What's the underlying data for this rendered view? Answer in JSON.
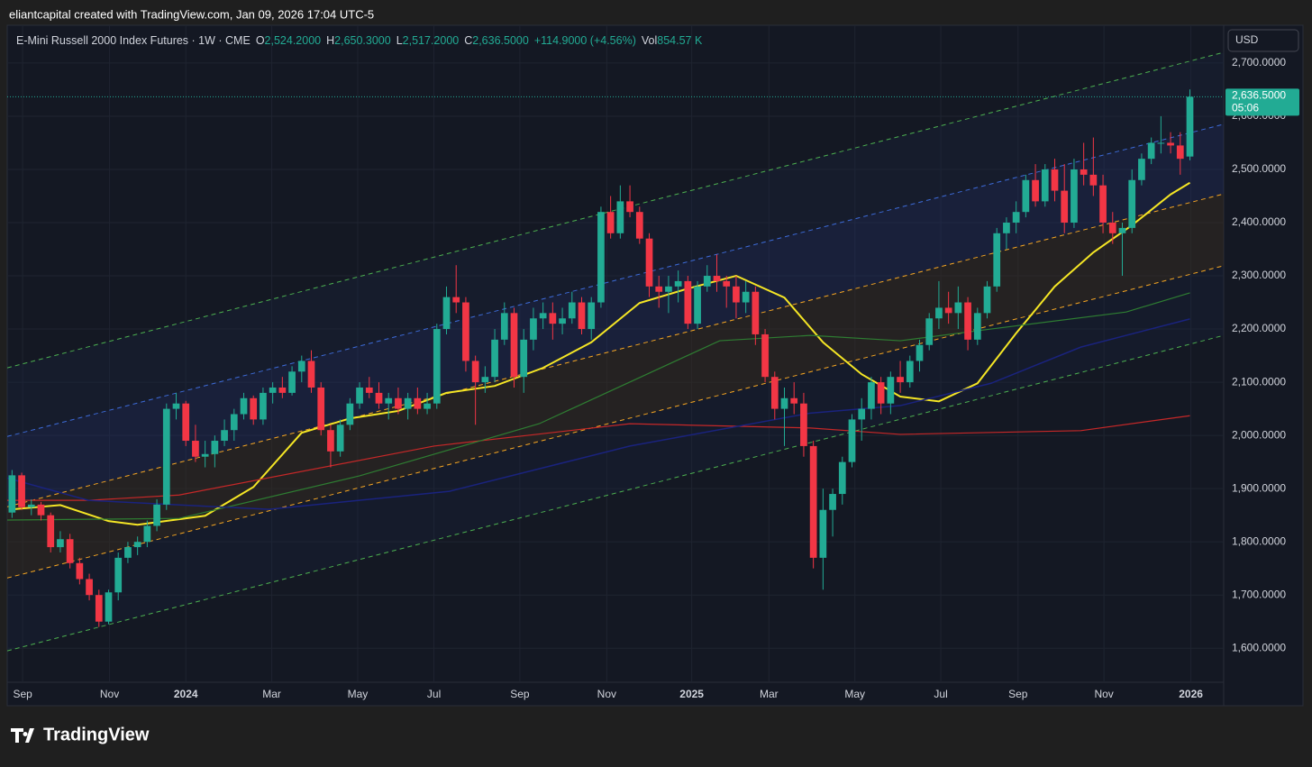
{
  "header": {
    "byline": "eliantcapital created with TradingView.com, Jan 09, 2026 17:04 UTC-5",
    "symbol": "E-Mini Russell 2000 Index Futures · 1W · CME",
    "o_key": "O",
    "o": "2,524.2000",
    "h_key": "H",
    "h": "2,650.3000",
    "l_key": "L",
    "l": "2,517.2000",
    "c_key": "C",
    "c": "2,636.5000",
    "change": "+114.9000 (+4.56%)",
    "vol_key": "Vol",
    "vol": "854.57 K",
    "currency": "USD",
    "price_tag": "2,636.5000",
    "countdown": "05:06",
    "brand": "TradingView"
  },
  "chart_data": {
    "type": "candlestick",
    "up_color": "#22ab94",
    "down_color": "#f23645",
    "ylim": [
      1536,
      2771
    ],
    "yticks": [
      {
        "value": 1600,
        "label": "1,600.0000"
      },
      {
        "value": 1700,
        "label": "1,700.0000"
      },
      {
        "value": 1800,
        "label": "1,800.0000"
      },
      {
        "value": 1900,
        "label": "1,900.0000"
      },
      {
        "value": 2000,
        "label": "2,000.0000"
      },
      {
        "value": 2100,
        "label": "2,100.0000"
      },
      {
        "value": 2200,
        "label": "2,200.0000"
      },
      {
        "value": 2300,
        "label": "2,300.0000"
      },
      {
        "value": 2400,
        "label": "2,400.0000"
      },
      {
        "value": 2500,
        "label": "2,500.0000"
      },
      {
        "value": 2600,
        "label": "2,600.0000"
      },
      {
        "value": 2700,
        "label": "2,700.0000"
      }
    ],
    "xlim": [
      -0.5,
      125.5
    ],
    "xticks": [
      {
        "value": 1.1,
        "label": "Sep"
      },
      {
        "value": 10.1,
        "label": "Nov"
      },
      {
        "value": 18,
        "label": "2024"
      },
      {
        "value": 26.9,
        "label": "Mar"
      },
      {
        "value": 35.8,
        "label": "May"
      },
      {
        "value": 43.7,
        "label": "Jul"
      },
      {
        "value": 52.6,
        "label": "Sep"
      },
      {
        "value": 61.6,
        "label": "Nov"
      },
      {
        "value": 70.4,
        "label": "2025"
      },
      {
        "value": 78.4,
        "label": "Mar"
      },
      {
        "value": 87.3,
        "label": "May"
      },
      {
        "value": 96.2,
        "label": "Jul"
      },
      {
        "value": 104.2,
        "label": "Sep"
      },
      {
        "value": 113.1,
        "label": "Nov"
      },
      {
        "value": 122.1,
        "label": "2026"
      }
    ],
    "grid": true,
    "last_price_color": "#22ab94",
    "candles": [
      [
        1855,
        1935,
        1845,
        1925
      ],
      [
        1925,
        1930,
        1860,
        1865
      ],
      [
        1865,
        1880,
        1850,
        1870
      ],
      [
        1870,
        1875,
        1840,
        1850
      ],
      [
        1850,
        1855,
        1780,
        1790
      ],
      [
        1790,
        1820,
        1780,
        1805
      ],
      [
        1805,
        1815,
        1750,
        1760
      ],
      [
        1760,
        1770,
        1720,
        1730
      ],
      [
        1730,
        1740,
        1690,
        1700
      ],
      [
        1700,
        1710,
        1640,
        1650
      ],
      [
        1650,
        1710,
        1645,
        1705
      ],
      [
        1705,
        1780,
        1690,
        1770
      ],
      [
        1770,
        1800,
        1760,
        1790
      ],
      [
        1790,
        1810,
        1775,
        1800
      ],
      [
        1800,
        1840,
        1790,
        1830
      ],
      [
        1830,
        1880,
        1820,
        1870
      ],
      [
        1870,
        2060,
        1860,
        2050
      ],
      [
        2050,
        2080,
        2030,
        2060
      ],
      [
        2060,
        2065,
        1980,
        1990
      ],
      [
        1990,
        2020,
        1950,
        1960
      ],
      [
        1960,
        1990,
        1940,
        1965
      ],
      [
        1965,
        2000,
        1940,
        1990
      ],
      [
        1990,
        2030,
        1980,
        2010
      ],
      [
        2010,
        2050,
        1990,
        2040
      ],
      [
        2040,
        2080,
        2030,
        2070
      ],
      [
        2070,
        2075,
        2020,
        2030
      ],
      [
        2030,
        2090,
        2020,
        2080
      ],
      [
        2080,
        2100,
        2060,
        2090
      ],
      [
        2090,
        2110,
        2070,
        2080
      ],
      [
        2080,
        2130,
        2075,
        2120
      ],
      [
        2120,
        2150,
        2100,
        2140
      ],
      [
        2140,
        2160,
        2080,
        2090
      ],
      [
        2090,
        2100,
        2000,
        2010
      ],
      [
        2010,
        2020,
        1940,
        1970
      ],
      [
        1970,
        2030,
        1960,
        2020
      ],
      [
        2020,
        2070,
        2010,
        2060
      ],
      [
        2060,
        2100,
        2050,
        2090
      ],
      [
        2090,
        2110,
        2070,
        2080
      ],
      [
        2080,
        2100,
        2050,
        2060
      ],
      [
        2060,
        2080,
        2030,
        2070
      ],
      [
        2070,
        2090,
        2040,
        2050
      ],
      [
        2050,
        2080,
        2030,
        2070
      ],
      [
        2070,
        2090,
        2040,
        2050
      ],
      [
        2050,
        2080,
        2040,
        2060
      ],
      [
        2060,
        2210,
        2050,
        2200
      ],
      [
        2200,
        2280,
        2190,
        2260
      ],
      [
        2260,
        2320,
        2230,
        2250
      ],
      [
        2250,
        2260,
        2120,
        2140
      ],
      [
        2140,
        2150,
        2020,
        2100
      ],
      [
        2100,
        2130,
        2080,
        2110
      ],
      [
        2110,
        2200,
        2100,
        2180
      ],
      [
        2180,
        2250,
        2170,
        2230
      ],
      [
        2230,
        2240,
        2090,
        2110
      ],
      [
        2110,
        2200,
        2080,
        2180
      ],
      [
        2180,
        2240,
        2160,
        2220
      ],
      [
        2220,
        2250,
        2200,
        2230
      ],
      [
        2230,
        2250,
        2180,
        2210
      ],
      [
        2210,
        2240,
        2190,
        2220
      ],
      [
        2220,
        2270,
        2210,
        2250
      ],
      [
        2250,
        2260,
        2190,
        2200
      ],
      [
        2200,
        2260,
        2180,
        2250
      ],
      [
        2250,
        2430,
        2240,
        2420
      ],
      [
        2420,
        2450,
        2370,
        2380
      ],
      [
        2380,
        2470,
        2370,
        2440
      ],
      [
        2440,
        2470,
        2410,
        2420
      ],
      [
        2420,
        2430,
        2360,
        2370
      ],
      [
        2370,
        2380,
        2260,
        2280
      ],
      [
        2280,
        2300,
        2240,
        2270
      ],
      [
        2270,
        2300,
        2230,
        2280
      ],
      [
        2280,
        2310,
        2250,
        2290
      ],
      [
        2290,
        2300,
        2200,
        2210
      ],
      [
        2210,
        2290,
        2200,
        2280
      ],
      [
        2280,
        2320,
        2270,
        2300
      ],
      [
        2300,
        2340,
        2270,
        2290
      ],
      [
        2290,
        2300,
        2240,
        2280
      ],
      [
        2280,
        2300,
        2220,
        2250
      ],
      [
        2250,
        2290,
        2230,
        2270
      ],
      [
        2270,
        2280,
        2170,
        2190
      ],
      [
        2190,
        2200,
        2100,
        2110
      ],
      [
        2110,
        2120,
        2030,
        2050
      ],
      [
        2050,
        2090,
        1980,
        2070
      ],
      [
        2070,
        2100,
        2040,
        2060
      ],
      [
        2060,
        2080,
        1960,
        1980
      ],
      [
        1980,
        1990,
        1750,
        1770
      ],
      [
        1770,
        1900,
        1710,
        1860
      ],
      [
        1860,
        1900,
        1810,
        1890
      ],
      [
        1890,
        1960,
        1870,
        1950
      ],
      [
        1950,
        2040,
        1940,
        2030
      ],
      [
        2030,
        2070,
        1990,
        2050
      ],
      [
        2050,
        2110,
        2030,
        2100
      ],
      [
        2100,
        2110,
        2040,
        2060
      ],
      [
        2060,
        2120,
        2040,
        2110
      ],
      [
        2110,
        2140,
        2080,
        2100
      ],
      [
        2100,
        2150,
        2090,
        2140
      ],
      [
        2140,
        2180,
        2120,
        2170
      ],
      [
        2170,
        2230,
        2160,
        2220
      ],
      [
        2220,
        2290,
        2200,
        2240
      ],
      [
        2240,
        2270,
        2210,
        2230
      ],
      [
        2230,
        2280,
        2200,
        2250
      ],
      [
        2250,
        2260,
        2160,
        2180
      ],
      [
        2180,
        2240,
        2170,
        2230
      ],
      [
        2230,
        2290,
        2220,
        2280
      ],
      [
        2280,
        2390,
        2270,
        2380
      ],
      [
        2380,
        2410,
        2350,
        2400
      ],
      [
        2400,
        2440,
        2380,
        2420
      ],
      [
        2420,
        2490,
        2410,
        2480
      ],
      [
        2480,
        2510,
        2430,
        2440
      ],
      [
        2440,
        2510,
        2430,
        2500
      ],
      [
        2500,
        2520,
        2440,
        2460
      ],
      [
        2460,
        2510,
        2380,
        2400
      ],
      [
        2400,
        2520,
        2390,
        2500
      ],
      [
        2500,
        2550,
        2470,
        2490
      ],
      [
        2490,
        2560,
        2450,
        2470
      ],
      [
        2470,
        2490,
        2380,
        2400
      ],
      [
        2400,
        2420,
        2360,
        2380
      ],
      [
        2380,
        2400,
        2300,
        2390
      ],
      [
        2390,
        2500,
        2380,
        2480
      ],
      [
        2480,
        2530,
        2470,
        2520
      ],
      [
        2520,
        2560,
        2510,
        2550
      ],
      [
        2550,
        2600,
        2530,
        2550
      ],
      [
        2550,
        2570,
        2530,
        2545
      ],
      [
        2545,
        2570,
        2490,
        2520
      ],
      [
        2524.2,
        2650.3,
        2517.2,
        2636.5
      ]
    ],
    "channels": [
      {
        "color": "#4caf50",
        "start": 2127,
        "end": 2720
      },
      {
        "color": "#3d6bd8",
        "start": 1998,
        "end": 2585
      },
      {
        "color": "#f5a623",
        "start": 1866,
        "end": 2454
      },
      {
        "color": "#f5a623",
        "start": 1732,
        "end": 2319
      },
      {
        "color": "#4caf50",
        "start": 1595,
        "end": 2188
      }
    ],
    "lines": [
      {
        "color": "#f5e625",
        "width": 2,
        "x": [
          0,
          5,
          10,
          13,
          20,
          25,
          30,
          35,
          40,
          45,
          50,
          55,
          60,
          65,
          70,
          75,
          80,
          84,
          88,
          92,
          96,
          100,
          104,
          108,
          112,
          116,
          120,
          122
        ],
        "values": [
          1861,
          1869,
          1839,
          1832,
          1849,
          1903,
          2005,
          2032,
          2046,
          2080,
          2093,
          2127,
          2175,
          2249,
          2276,
          2300,
          2259,
          2175,
          2115,
          2073,
          2064,
          2098,
          2192,
          2280,
          2344,
          2395,
          2453,
          2475
        ]
      },
      {
        "color": "#c62828",
        "width": 1.2,
        "x": [
          -0.5,
          7.9,
          17.3,
          43.7,
          64,
          82.7,
          92,
          110.7,
          122
        ],
        "values": [
          1878,
          1878,
          1888,
          1980,
          2022,
          2014,
          2002,
          2009,
          2037
        ]
      },
      {
        "color": "#2e7d32",
        "width": 1.2,
        "x": [
          -0.5,
          17.3,
          36,
          54.6,
          73.3,
          82.7,
          92,
          101.4,
          115.4,
          122
        ],
        "values": [
          1841,
          1844,
          1924,
          2022,
          2178,
          2188,
          2178,
          2200,
          2232,
          2268
        ]
      },
      {
        "color": "#1a237e",
        "width": 1.5,
        "x": [
          -0.5,
          7.9,
          26.6,
          45.3,
          64,
          82.7,
          92,
          101.4,
          110.7,
          122
        ],
        "values": [
          1920,
          1878,
          1861,
          1895,
          1980,
          2042,
          2056,
          2098,
          2166,
          2219
        ]
      }
    ]
  }
}
